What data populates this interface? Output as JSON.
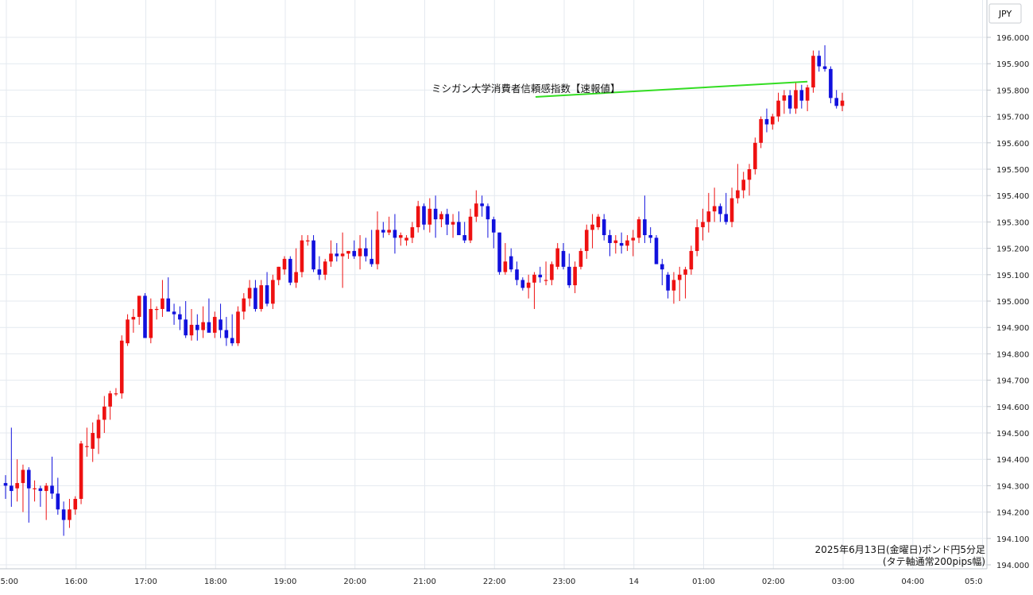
{
  "chart_data": {
    "type": "candlestick",
    "title": "",
    "currency_label": "JPY",
    "ylim": [
      194.0,
      196.1
    ],
    "y_ticks": [
      "196.000",
      "195.900",
      "195.800",
      "195.700",
      "195.600",
      "195.500",
      "195.400",
      "195.300",
      "195.200",
      "195.100",
      "195.000",
      "194.900",
      "194.800",
      "194.700",
      "194.600",
      "194.500",
      "194.400",
      "194.300",
      "194.200",
      "194.100",
      "194.000"
    ],
    "x_ticks": [
      "5:00",
      "16:00",
      "17:00",
      "18:00",
      "19:00",
      "20:00",
      "21:00",
      "22:00",
      "23:00",
      "14",
      "01:00",
      "02:00",
      "03:00",
      "04:00",
      "05:0"
    ],
    "annotation": {
      "text": "ミシガン大学消費者信頼感指数【速報値】",
      "bar_index": 138,
      "color": "#33dd22"
    },
    "footer": {
      "line1": "2025年6月13日(金曜日)ポンド円5分足",
      "line2": "(タテ軸通常200pips幅)"
    },
    "colors": {
      "up": "#ee1111",
      "down": "#1111dd",
      "wick_up": "#ee1111",
      "wick_down": "#1111dd"
    },
    "candles": [
      [
        194.31,
        194.34,
        194.25,
        194.3
      ],
      [
        194.3,
        194.52,
        194.22,
        194.28
      ],
      [
        194.29,
        194.4,
        194.24,
        194.31
      ],
      [
        194.31,
        194.38,
        194.2,
        194.36
      ],
      [
        194.36,
        194.37,
        194.16,
        194.29
      ],
      [
        194.29,
        194.32,
        194.24,
        194.29
      ],
      [
        194.29,
        194.3,
        194.22,
        194.28
      ],
      [
        194.28,
        194.31,
        194.17,
        194.3
      ],
      [
        194.3,
        194.41,
        194.25,
        194.27
      ],
      [
        194.27,
        194.33,
        194.19,
        194.21
      ],
      [
        194.21,
        194.24,
        194.11,
        194.17
      ],
      [
        194.17,
        194.25,
        194.14,
        194.21
      ],
      [
        194.21,
        194.26,
        194.19,
        194.25
      ],
      [
        194.25,
        194.47,
        194.23,
        194.46
      ],
      [
        194.45,
        194.52,
        194.41,
        194.45
      ],
      [
        194.44,
        194.54,
        194.39,
        194.5
      ],
      [
        194.48,
        194.57,
        194.42,
        194.55
      ],
      [
        194.55,
        194.64,
        194.5,
        194.6
      ],
      [
        194.6,
        194.66,
        194.55,
        194.65
      ],
      [
        194.65,
        194.67,
        194.64,
        194.65
      ],
      [
        194.65,
        194.87,
        194.63,
        194.85
      ],
      [
        194.84,
        194.95,
        194.83,
        194.93
      ],
      [
        194.93,
        194.97,
        194.88,
        194.94
      ],
      [
        194.94,
        195.02,
        194.91,
        195.02
      ],
      [
        195.02,
        195.03,
        194.86,
        194.86
      ],
      [
        194.86,
        195.01,
        194.84,
        194.97
      ],
      [
        194.97,
        194.98,
        194.93,
        194.97
      ],
      [
        194.97,
        195.08,
        194.94,
        195.01
      ],
      [
        195.01,
        195.09,
        194.97,
        194.96
      ],
      [
        194.96,
        194.99,
        194.91,
        194.95
      ],
      [
        194.95,
        194.98,
        194.89,
        194.93
      ],
      [
        194.93,
        195.0,
        194.86,
        194.87
      ],
      [
        194.87,
        194.97,
        194.85,
        194.91
      ],
      [
        194.91,
        194.95,
        194.85,
        194.89
      ],
      [
        194.89,
        194.98,
        194.86,
        194.92
      ],
      [
        194.92,
        195.01,
        194.89,
        194.88
      ],
      [
        194.88,
        194.96,
        194.86,
        194.94
      ],
      [
        194.93,
        194.99,
        194.86,
        194.89
      ],
      [
        194.89,
        194.94,
        194.83,
        194.86
      ],
      [
        194.86,
        194.95,
        194.83,
        194.84
      ],
      [
        194.84,
        194.98,
        194.83,
        194.96
      ],
      [
        194.96,
        195.03,
        194.93,
        195.01
      ],
      [
        195.01,
        195.08,
        194.98,
        195.05
      ],
      [
        195.05,
        195.08,
        194.96,
        194.97
      ],
      [
        194.97,
        195.08,
        194.96,
        195.06
      ],
      [
        195.06,
        195.11,
        194.98,
        194.99
      ],
      [
        194.99,
        195.1,
        194.97,
        195.08
      ],
      [
        195.08,
        195.13,
        195.06,
        195.13
      ],
      [
        195.12,
        195.17,
        195.1,
        195.16
      ],
      [
        195.16,
        195.17,
        195.06,
        195.07
      ],
      [
        195.07,
        195.2,
        195.05,
        195.11
      ],
      [
        195.11,
        195.25,
        195.09,
        195.23
      ],
      [
        195.23,
        195.25,
        195.21,
        195.23
      ],
      [
        195.23,
        195.25,
        195.11,
        195.12
      ],
      [
        195.12,
        195.17,
        195.08,
        195.1
      ],
      [
        195.1,
        195.16,
        195.08,
        195.15
      ],
      [
        195.15,
        195.23,
        195.13,
        195.18
      ],
      [
        195.18,
        195.22,
        195.15,
        195.17
      ],
      [
        195.17,
        195.26,
        195.05,
        195.18
      ],
      [
        195.18,
        195.19,
        195.16,
        195.19
      ],
      [
        195.19,
        195.23,
        195.16,
        195.17
      ],
      [
        195.17,
        195.25,
        195.12,
        195.2
      ],
      [
        195.2,
        195.24,
        195.15,
        195.17
      ],
      [
        195.16,
        195.27,
        195.13,
        195.14
      ],
      [
        195.14,
        195.34,
        195.12,
        195.27
      ],
      [
        195.27,
        195.3,
        195.24,
        195.26
      ],
      [
        195.26,
        195.32,
        195.25,
        195.27
      ],
      [
        195.27,
        195.33,
        195.18,
        195.24
      ],
      [
        195.24,
        195.26,
        195.21,
        195.25
      ],
      [
        195.23,
        195.25,
        195.21,
        195.24
      ],
      [
        195.24,
        195.3,
        195.22,
        195.28
      ],
      [
        195.28,
        195.38,
        195.26,
        195.36
      ],
      [
        195.36,
        195.37,
        195.27,
        195.29
      ],
      [
        195.29,
        195.39,
        195.26,
        195.35
      ],
      [
        195.35,
        195.4,
        195.24,
        195.31
      ],
      [
        195.31,
        195.34,
        195.28,
        195.33
      ],
      [
        195.33,
        195.35,
        195.25,
        195.29
      ],
      [
        195.29,
        195.33,
        195.24,
        195.3
      ],
      [
        195.3,
        195.34,
        195.27,
        195.25
      ],
      [
        195.25,
        195.3,
        195.22,
        195.23
      ],
      [
        195.23,
        195.35,
        195.22,
        195.32
      ],
      [
        195.32,
        195.42,
        195.3,
        195.37
      ],
      [
        195.37,
        195.4,
        195.32,
        195.36
      ],
      [
        195.36,
        195.37,
        195.24,
        195.31
      ],
      [
        195.31,
        195.32,
        195.2,
        195.26
      ],
      [
        195.26,
        195.26,
        195.1,
        195.11
      ],
      [
        195.11,
        195.22,
        195.1,
        195.15
      ],
      [
        195.17,
        195.2,
        195.11,
        195.12
      ],
      [
        195.12,
        195.15,
        195.06,
        195.08
      ],
      [
        195.08,
        195.09,
        195.04,
        195.05
      ],
      [
        195.05,
        195.1,
        195.01,
        195.07
      ],
      [
        195.07,
        195.11,
        194.97,
        195.1
      ],
      [
        195.1,
        195.13,
        195.07,
        195.09
      ],
      [
        195.08,
        195.15,
        195.06,
        195.08
      ],
      [
        195.08,
        195.15,
        195.06,
        195.14
      ],
      [
        195.13,
        195.22,
        195.12,
        195.2
      ],
      [
        195.19,
        195.22,
        195.12,
        195.13
      ],
      [
        195.13,
        195.18,
        195.05,
        195.06
      ],
      [
        195.06,
        195.15,
        195.03,
        195.13
      ],
      [
        195.13,
        195.2,
        195.12,
        195.19
      ],
      [
        195.19,
        195.29,
        195.16,
        195.27
      ],
      [
        195.27,
        195.33,
        195.2,
        195.29
      ],
      [
        195.28,
        195.33,
        195.27,
        195.32
      ],
      [
        195.31,
        195.33,
        195.23,
        195.25
      ],
      [
        195.25,
        195.27,
        195.17,
        195.22
      ],
      [
        195.22,
        195.25,
        195.18,
        195.23
      ],
      [
        195.22,
        195.26,
        195.18,
        195.21
      ],
      [
        195.21,
        195.25,
        195.19,
        195.23
      ],
      [
        195.23,
        195.27,
        195.17,
        195.24
      ],
      [
        195.24,
        195.32,
        195.22,
        195.31
      ],
      [
        195.31,
        195.4,
        195.22,
        195.25
      ],
      [
        195.25,
        195.28,
        195.22,
        195.24
      ],
      [
        195.24,
        195.25,
        195.16,
        195.14
      ],
      [
        195.14,
        195.16,
        195.06,
        195.12
      ],
      [
        195.1,
        195.11,
        195.01,
        195.04
      ],
      [
        195.04,
        195.11,
        194.99,
        195.08
      ],
      [
        195.08,
        195.13,
        195.0,
        195.1
      ],
      [
        195.1,
        195.13,
        195.01,
        195.12
      ],
      [
        195.12,
        195.21,
        195.1,
        195.19
      ],
      [
        195.19,
        195.31,
        195.17,
        195.28
      ],
      [
        195.28,
        195.35,
        195.23,
        195.3
      ],
      [
        195.3,
        195.41,
        195.26,
        195.34
      ],
      [
        195.34,
        195.43,
        195.3,
        195.36
      ],
      [
        195.36,
        195.37,
        195.3,
        195.33
      ],
      [
        195.33,
        195.41,
        195.29,
        195.3
      ],
      [
        195.3,
        195.43,
        195.28,
        195.39
      ],
      [
        195.39,
        195.52,
        195.37,
        195.42
      ],
      [
        195.42,
        195.49,
        195.39,
        195.46
      ],
      [
        195.46,
        195.52,
        195.4,
        195.5
      ],
      [
        195.5,
        195.62,
        195.48,
        195.6
      ],
      [
        195.6,
        195.7,
        195.58,
        195.69
      ],
      [
        195.69,
        195.73,
        195.64,
        195.67
      ],
      [
        195.67,
        195.71,
        195.65,
        195.7
      ],
      [
        195.7,
        195.79,
        195.68,
        195.76
      ],
      [
        195.76,
        195.8,
        195.71,
        195.78
      ],
      [
        195.78,
        195.8,
        195.71,
        195.73
      ],
      [
        195.73,
        195.83,
        195.71,
        195.8
      ],
      [
        195.8,
        195.82,
        195.73,
        195.76
      ],
      [
        195.76,
        195.82,
        195.72,
        195.81
      ],
      [
        195.81,
        195.95,
        195.79,
        195.93
      ],
      [
        195.93,
        195.95,
        195.87,
        195.89
      ],
      [
        195.89,
        195.97,
        195.87,
        195.88
      ],
      [
        195.88,
        195.89,
        195.75,
        195.77
      ],
      [
        195.77,
        195.8,
        195.73,
        195.74
      ],
      [
        195.74,
        195.79,
        195.72,
        195.76
      ]
    ]
  }
}
